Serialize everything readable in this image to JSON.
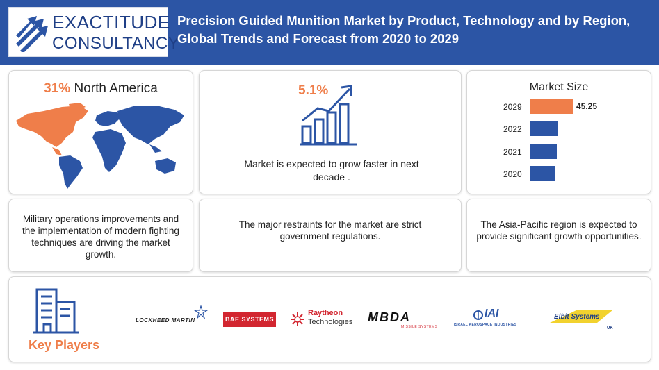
{
  "header": {
    "logo_line1": "EXACTITUDE",
    "logo_line2": "CONSULTANCY",
    "title_line1": "Precision Guided Munition Market by Product, Technology and by Region,",
    "title_line2": "Global Trends and Forecast from 2020 to 2029"
  },
  "region": {
    "share": "31%",
    "name": "North America",
    "highlight_color": "#ef7e4a",
    "other_color": "#2c55a5"
  },
  "growth": {
    "cagr": "5.1%",
    "text": "Market is expected to grow faster in next decade ."
  },
  "market_size": {
    "title": "Market Size",
    "bars": [
      {
        "year": "2029",
        "value": 45.25,
        "label": "45.25",
        "color": "#ef7e4a"
      },
      {
        "year": "2022",
        "color": "#2c55a5"
      },
      {
        "year": "2021",
        "color": "#2c55a5"
      },
      {
        "year": "2020",
        "color": "#2c55a5"
      }
    ]
  },
  "drivers": {
    "text": "Military operations improvements and the implementation of modern fighting techniques are driving the market growth."
  },
  "restraints": {
    "text": "The major restraints for the market are strict government regulations."
  },
  "opportunities": {
    "text": "The Asia-Pacific region is expected to provide significant growth opportunities."
  },
  "key_players": {
    "title": "Key Players",
    "companies": {
      "lockheed": "LOCKHEED MARTIN",
      "bae": "BAE SYSTEMS",
      "raytheon_1": "Raytheon",
      "raytheon_2": "Technologies",
      "mbda": "MBDA",
      "mbda_sub": "MISSILE SYSTEMS",
      "iai": "IAI",
      "iai_sub": "ISRAEL AEROSPACE INDUSTRIES",
      "elbit": "Elbit Systems",
      "elbit_sub": "UK"
    }
  }
}
